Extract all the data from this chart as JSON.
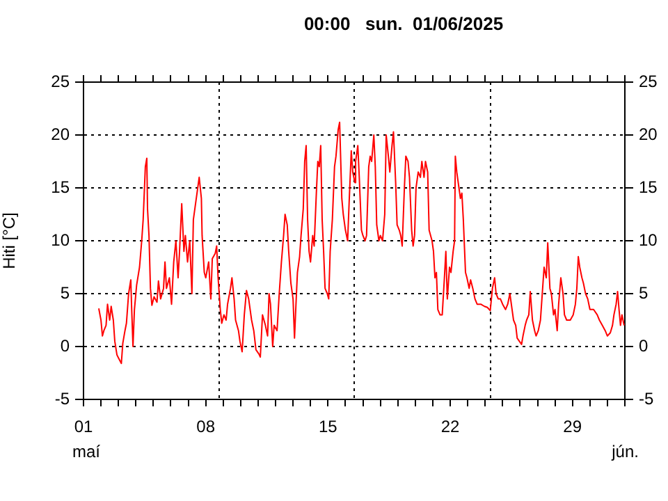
{
  "chart_data": {
    "type": "line",
    "title": "00:00   sun.  01/06/2025",
    "ylabel": "Hiti [°C]",
    "annotations": [
      "maí",
      "jún."
    ],
    "xlim": [
      "2025-05-01",
      "2025-06-01"
    ],
    "xticks": [
      {
        "value": "2025-05-01",
        "label": "01"
      },
      {
        "value": "2025-05-02",
        "label": null
      },
      {
        "value": "2025-05-03",
        "label": null
      },
      {
        "value": "2025-05-04",
        "label": null
      },
      {
        "value": "2025-05-05",
        "label": null
      },
      {
        "value": "2025-05-06",
        "label": null
      },
      {
        "value": "2025-05-07",
        "label": null
      },
      {
        "value": "2025-05-08",
        "label": "08"
      },
      {
        "value": "2025-05-09",
        "label": null
      },
      {
        "value": "2025-05-10",
        "label": null
      },
      {
        "value": "2025-05-11",
        "label": null
      },
      {
        "value": "2025-05-12",
        "label": null
      },
      {
        "value": "2025-05-13",
        "label": null
      },
      {
        "value": "2025-05-14",
        "label": null
      },
      {
        "value": "2025-05-15",
        "label": "15"
      },
      {
        "value": "2025-05-16",
        "label": null
      },
      {
        "value": "2025-05-17",
        "label": null
      },
      {
        "value": "2025-05-18",
        "label": null
      },
      {
        "value": "2025-05-19",
        "label": null
      },
      {
        "value": "2025-05-20",
        "label": null
      },
      {
        "value": "2025-05-21",
        "label": null
      },
      {
        "value": "2025-05-22",
        "label": "22"
      },
      {
        "value": "2025-05-23",
        "label": null
      },
      {
        "value": "2025-05-24",
        "label": null
      },
      {
        "value": "2025-05-25",
        "label": null
      },
      {
        "value": "2025-05-26",
        "label": null
      },
      {
        "value": "2025-05-27",
        "label": null
      },
      {
        "value": "2025-05-28",
        "label": null
      },
      {
        "value": "2025-05-29",
        "label": "29"
      },
      {
        "value": "2025-05-30",
        "label": null
      },
      {
        "value": "2025-05-31",
        "label": null
      },
      {
        "value": "2025-06-01",
        "label": null
      }
    ],
    "ylim": [
      -5,
      25
    ],
    "yticks": [
      -5,
      0,
      5,
      10,
      15,
      20,
      25
    ],
    "y2lim": [
      -5,
      25
    ],
    "y2ticks": [
      -5,
      0,
      5,
      10,
      15,
      20,
      25
    ],
    "grid": "y",
    "ref_lines": [
      {
        "axis": "x",
        "value": "2025-05-08T17:00",
        "line_style": "dotted",
        "color": "#000000"
      },
      {
        "axis": "x",
        "value": "2025-05-16T11:00",
        "line_style": "dotted",
        "color": "#000000"
      },
      {
        "axis": "x",
        "value": "2025-05-24T06:00",
        "line_style": "dotted",
        "color": "#000000"
      }
    ],
    "series": [
      {
        "color": "#ff0000",
        "x": [
          "2025-05-01T21:00",
          "2025-05-02T00:00",
          "2025-05-02T02:00",
          "2025-05-02T04:00",
          "2025-05-02T07:00",
          "2025-05-02T09:00",
          "2025-05-02T12:00",
          "2025-05-02T14:00",
          "2025-05-02T17:00",
          "2025-05-02T19:00",
          "2025-05-02T22:00",
          "2025-05-03T01:00",
          "2025-05-03T04:00",
          "2025-05-03T06:00",
          "2025-05-03T09:00",
          "2025-05-03T11:00",
          "2025-05-03T14:00",
          "2025-05-03T17:00",
          "2025-05-03T18:00",
          "2025-05-03T20:00",
          "2025-05-03T22:00",
          "2025-05-04T01:00",
          "2025-05-04T05:00",
          "2025-05-04T08:00",
          "2025-05-04T10:00",
          "2025-05-04T13:00",
          "2025-05-04T15:00",
          "2025-05-04T16:00",
          "2025-05-04T18:00",
          "2025-05-04T20:00",
          "2025-05-04T22:00",
          "2025-05-05T01:00",
          "2025-05-05T05:00",
          "2025-05-05T07:00",
          "2025-05-05T10:00",
          "2025-05-05T14:00",
          "2025-05-05T16:00",
          "2025-05-05T18:00",
          "2025-05-05T22:00",
          "2025-05-06T01:00",
          "2025-05-06T04:00",
          "2025-05-06T07:00",
          "2025-05-06T10:00",
          "2025-05-06T12:00",
          "2025-05-06T15:00",
          "2025-05-06T18:00",
          "2025-05-06T20:00",
          "2025-05-06T23:00",
          "2025-05-07T02:00",
          "2025-05-07T05:00",
          "2025-05-07T07:00",
          "2025-05-07T11:00",
          "2025-05-07T13:00",
          "2025-05-07T15:00",
          "2025-05-07T18:00",
          "2025-05-07T19:00",
          "2025-05-07T22:00",
          "2025-05-08T00:00",
          "2025-05-08T04:00",
          "2025-05-08T07:00",
          "2025-05-08T09:00",
          "2025-05-08T13:00",
          "2025-05-08T15:00",
          "2025-05-08T17:00",
          "2025-05-08T20:00",
          "2025-05-08T22:00",
          "2025-05-09T01:00",
          "2025-05-09T04:00",
          "2025-05-09T06:00",
          "2025-05-09T10:00",
          "2025-05-09T12:00",
          "2025-05-09T15:00",
          "2025-05-09T17:00",
          "2025-05-09T21:00",
          "2025-05-09T23:00",
          "2025-05-10T02:00",
          "2025-05-10T05:00",
          "2025-05-10T08:00",
          "2025-05-10T11:00",
          "2025-05-10T15:00",
          "2025-05-10T18:00",
          "2025-05-10T21:00",
          "2025-05-11T01:00",
          "2025-05-11T03:00",
          "2025-05-11T06:00",
          "2025-05-11T10:00",
          "2025-05-11T13:00",
          "2025-05-11T15:00",
          "2025-05-11T17:00",
          "2025-05-11T20:00",
          "2025-05-11T22:00",
          "2025-05-12T02:00",
          "2025-05-12T05:00",
          "2025-05-12T08:00",
          "2025-05-12T11:00",
          "2025-05-12T13:00",
          "2025-05-12T16:00",
          "2025-05-12T18:00",
          "2025-05-12T21:00",
          "2025-05-13T00:00",
          "2025-05-13T02:00",
          "2025-05-13T04:00",
          "2025-05-13T06:00",
          "2025-05-13T09:00",
          "2025-05-13T11:00",
          "2025-05-13T14:00",
          "2025-05-13T16:00",
          "2025-05-13T18:00",
          "2025-05-13T20:00",
          "2025-05-13T22:00",
          "2025-05-14T00:00",
          "2025-05-14T03:00",
          "2025-05-14T05:00",
          "2025-05-14T08:00",
          "2025-05-14T10:00",
          "2025-05-14T12:00",
          "2025-05-14T14:00",
          "2025-05-14T16:00",
          "2025-05-14T18:00",
          "2025-05-14T20:00",
          "2025-05-14T23:00",
          "2025-05-15T01:00",
          "2025-05-15T03:00",
          "2025-05-15T06:00",
          "2025-05-15T09:00",
          "2025-05-15T11:00",
          "2025-05-15T14:00",
          "2025-05-15T16:00",
          "2025-05-15T19:00",
          "2025-05-15T21:00",
          "2025-05-16T00:00",
          "2025-05-16T03:00",
          "2025-05-16T05:00",
          "2025-05-16T08:00",
          "2025-05-16T10:00",
          "2025-05-16T13:00",
          "2025-05-16T14:00",
          "2025-05-16T17:00",
          "2025-05-16T19:00",
          "2025-05-16T22:00",
          "2025-05-17T00:00",
          "2025-05-17T03:00",
          "2025-05-17T05:00",
          "2025-05-17T08:00",
          "2025-05-17T10:00",
          "2025-05-17T12:00",
          "2025-05-17T15:00",
          "2025-05-17T17:00",
          "2025-05-17T19:00",
          "2025-05-17T22:00",
          "2025-05-18T00:00",
          "2025-05-18T03:00",
          "2025-05-18T06:00",
          "2025-05-18T08:00",
          "2025-05-18T11:00",
          "2025-05-18T13:00",
          "2025-05-18T16:00",
          "2025-05-18T18:00",
          "2025-05-18T21:00",
          "2025-05-18T23:00",
          "2025-05-19T02:00",
          "2025-05-19T04:00",
          "2025-05-19T06:00",
          "2025-05-19T09:00",
          "2025-05-19T11:00",
          "2025-05-19T14:00",
          "2025-05-19T16:00",
          "2025-05-19T19:00",
          "2025-05-19T21:00",
          "2025-05-19T23:00",
          "2025-05-20T01:00",
          "2025-05-20T04:00",
          "2025-05-20T07:00",
          "2025-05-20T09:00",
          "2025-05-20T12:00",
          "2025-05-20T14:00",
          "2025-05-20T17:00",
          "2025-05-20T19:00",
          "2025-05-20T23:00",
          "2025-05-21T01:00",
          "2025-05-21T03:00",
          "2025-05-21T05:00",
          "2025-05-21T07:00",
          "2025-05-21T10:00",
          "2025-05-21T13:00",
          "2025-05-21T16:00",
          "2025-05-21T18:00",
          "2025-05-21T20:00",
          "2025-05-21T23:00",
          "2025-05-22T01:00",
          "2025-05-22T04:00",
          "2025-05-22T06:00",
          "2025-05-22T07:00",
          "2025-05-22T09:00",
          "2025-05-22T12:00",
          "2025-05-22T14:00",
          "2025-05-22T16:00",
          "2025-05-22T18:00",
          "2025-05-22T21:00",
          "2025-05-22T23:00",
          "2025-05-23T02:00",
          "2025-05-23T04:00",
          "2025-05-23T07:00",
          "2025-05-23T10:00",
          "2025-05-23T13:00",
          "2025-05-23T18:00",
          "2025-05-23T23:00",
          "2025-05-24T03:00",
          "2025-05-24T07:00",
          "2025-05-24T10:00",
          "2025-05-24T13:00",
          "2025-05-24T15:00",
          "2025-05-24T18:00",
          "2025-05-24T21:00",
          "2025-05-25T00:00",
          "2025-05-25T04:00",
          "2025-05-25T07:00",
          "2025-05-25T10:00",
          "2025-05-25T13:00",
          "2025-05-25T15:00",
          "2025-05-25T18:00",
          "2025-05-25T20:00",
          "2025-05-25T23:00",
          "2025-05-26T02:00",
          "2025-05-26T04:00",
          "2025-05-26T07:00",
          "2025-05-26T09:00",
          "2025-05-26T12:00",
          "2025-05-26T14:00",
          "2025-05-26T17:00",
          "2025-05-26T20:00",
          "2025-05-26T22:00",
          "2025-05-27T01:00",
          "2025-05-27T04:00",
          "2025-05-27T06:00",
          "2025-05-27T09:00",
          "2025-05-27T12:00",
          "2025-05-27T14:00",
          "2025-05-27T17:00",
          "2025-05-27T19:00",
          "2025-05-27T22:00",
          "2025-05-28T00:00",
          "2025-05-28T03:00",
          "2025-05-28T05:00",
          "2025-05-28T08:00",
          "2025-05-28T11:00",
          "2025-05-28T13:00",
          "2025-05-28T16:00",
          "2025-05-28T21:00",
          "2025-05-29T01:00",
          "2025-05-29T04:00",
          "2025-05-29T06:00",
          "2025-05-29T08:00",
          "2025-05-29T10:00",
          "2025-05-29T13:00",
          "2025-05-29T15:00",
          "2025-05-29T18:00",
          "2025-05-29T21:00",
          "2025-05-30T00:00",
          "2025-05-30T05:00",
          "2025-05-30T10:00",
          "2025-05-30T13:00",
          "2025-05-30T17:00",
          "2025-05-30T21:00",
          "2025-05-31T00:00",
          "2025-05-31T04:00",
          "2025-05-31T07:00",
          "2025-05-31T09:00",
          "2025-05-31T12:00",
          "2025-05-31T14:00",
          "2025-05-31T16:00",
          "2025-05-31T18:00",
          "2025-05-31T20:00",
          "2025-05-31T23:00"
        ],
        "values": [
          3.6,
          2.5,
          1.0,
          1.5,
          2.0,
          4.0,
          2.5,
          3.8,
          2.5,
          0.5,
          -0.8,
          -1.2,
          -1.6,
          0.3,
          1.5,
          2.2,
          5.0,
          6.3,
          4.0,
          0.0,
          3.5,
          5.8,
          7.5,
          10.0,
          12.0,
          17.0,
          17.8,
          13.0,
          10.5,
          5.5,
          3.9,
          4.7,
          4.2,
          6.2,
          4.5,
          5.5,
          8.0,
          5.5,
          6.5,
          4.0,
          8.0,
          10.0,
          6.5,
          9.0,
          13.5,
          9.0,
          10.5,
          8.0,
          10.0,
          5.0,
          12.0,
          14.0,
          15.0,
          16.0,
          14.0,
          10.5,
          7.0,
          6.5,
          8.0,
          4.5,
          8.3,
          8.8,
          9.5,
          6.5,
          3.5,
          2.2,
          3.0,
          2.5,
          4.0,
          5.5,
          6.5,
          4.5,
          2.5,
          1.5,
          0.5,
          -0.5,
          3.0,
          5.3,
          4.5,
          2.5,
          1.5,
          -0.3,
          -0.7,
          -1.0,
          3.0,
          2.0,
          1.0,
          5.0,
          4.0,
          0.0,
          2.0,
          1.5,
          5.0,
          8.0,
          10.5,
          12.5,
          11.5,
          9.0,
          6.0,
          4.5,
          0.8,
          4.0,
          7.0,
          8.5,
          10.5,
          13.0,
          17.5,
          19.0,
          12.0,
          9.0,
          8.0,
          10.5,
          9.5,
          14.5,
          17.5,
          17.0,
          19.0,
          12.0,
          9.0,
          5.5,
          5.0,
          4.5,
          9.0,
          12.0,
          17.0,
          18.0,
          20.5,
          21.2,
          14.0,
          12.5,
          11.0,
          10.0,
          13.5,
          18.5,
          16.5,
          15.5,
          17.5,
          19.0,
          16.0,
          11.0,
          10.5,
          10.0,
          10.5,
          17.0,
          18.0,
          17.5,
          20.0,
          17.0,
          11.5,
          10.0,
          10.5,
          10.0,
          12.5,
          20.0,
          18.0,
          16.5,
          19.0,
          20.3,
          15.5,
          11.5,
          11.0,
          10.5,
          9.5,
          15.0,
          18.0,
          17.5,
          16.0,
          11.0,
          9.5,
          10.5,
          15.0,
          16.5,
          16.0,
          17.5,
          16.0,
          17.5,
          16.5,
          11.0,
          10.0,
          9.0,
          6.5,
          7.0,
          3.5,
          3.0,
          3.0,
          6.5,
          9.0,
          4.5,
          7.5,
          7.0,
          9.0,
          10.0,
          18.0,
          16.5,
          15.0,
          14.0,
          14.5,
          12.0,
          7.0,
          6.5,
          5.5,
          6.3,
          5.5,
          4.5,
          4.0,
          4.0,
          3.8,
          3.7,
          3.4,
          5.5,
          6.5,
          5.0,
          4.5,
          4.5,
          4.0,
          3.5,
          4.0,
          5.0,
          3.5,
          2.5,
          2.0,
          0.8,
          0.5,
          0.2,
          1.0,
          2.0,
          2.5,
          3.0,
          5.2,
          2.5,
          1.5,
          1.0,
          1.5,
          2.5,
          4.5,
          7.5,
          6.5,
          9.8,
          5.5,
          5.0,
          3.0,
          3.5,
          1.5,
          4.0,
          6.5,
          5.0,
          3.0,
          2.5,
          2.5,
          3.0,
          4.0,
          5.5,
          8.5,
          7.5,
          6.5,
          6.0,
          5.0,
          4.5,
          3.5,
          3.5,
          3.0,
          2.5,
          2.0,
          1.5,
          1.0,
          1.3,
          2.0,
          3.0,
          4.0,
          5.2,
          3.5,
          2.0,
          3.0,
          2.0
        ]
      }
    ]
  }
}
